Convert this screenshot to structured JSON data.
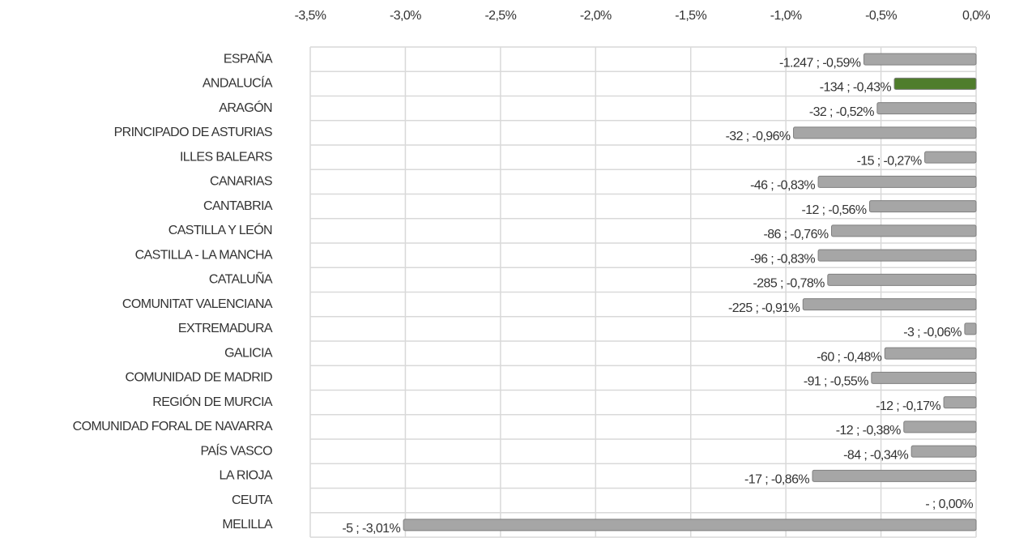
{
  "chart_data": {
    "type": "bar",
    "orientation": "horizontal",
    "categories": [
      "ESPAÑA",
      "ANDALUCÍA",
      "ARAGÓN",
      "PRINCIPADO DE ASTURIAS",
      "ILLES BALEARS",
      "CANARIAS",
      "CANTABRIA",
      "CASTILLA Y LEÓN",
      "CASTILLA - LA MANCHA",
      "CATALUÑA",
      "COMUNITAT VALENCIANA",
      "EXTREMADURA",
      "GALICIA",
      "COMUNIDAD DE MADRID",
      "REGIÓN DE MURCIA",
      "COMUNIDAD FORAL DE NAVARRA",
      "PAÍS VASCO",
      "LA RIOJA",
      "CEUTA",
      "MELILLA"
    ],
    "values": [
      -0.59,
      -0.43,
      -0.52,
      -0.96,
      -0.27,
      -0.83,
      -0.56,
      -0.76,
      -0.83,
      -0.78,
      -0.91,
      -0.06,
      -0.48,
      -0.55,
      -0.17,
      -0.38,
      -0.34,
      -0.86,
      0,
      -3.01
    ],
    "value_labels": [
      "-1.247 ; -0,59%",
      "-134 ; -0,43%",
      "-32 ; -0,52%",
      "-32 ; -0,96%",
      "-15 ; -0,27%",
      "-46 ; -0,83%",
      "-12 ; -0,56%",
      "-86 ; -0,76%",
      "-96 ; -0,83%",
      "-285 ; -0,78%",
      "-225 ; -0,91%",
      "-3 ; -0,06%",
      "-60 ; -0,48%",
      "-91 ; -0,55%",
      "-12 ; -0,17%",
      "-12 ; -0,38%",
      "-84 ; -0,34%",
      "-17 ; -0,86%",
      "- ; 0,00%",
      "-5 ; -3,01%"
    ],
    "colors": [
      "#a6a6a6",
      "#4f7d2c",
      "#a6a6a6",
      "#a6a6a6",
      "#a6a6a6",
      "#a6a6a6",
      "#a6a6a6",
      "#a6a6a6",
      "#a6a6a6",
      "#a6a6a6",
      "#a6a6a6",
      "#a6a6a6",
      "#a6a6a6",
      "#a6a6a6",
      "#a6a6a6",
      "#a6a6a6",
      "#a6a6a6",
      "#a6a6a6",
      "#a6a6a6",
      "#a6a6a6"
    ],
    "xlim": [
      -3.5,
      0
    ],
    "xticks": [
      {
        "value": -3.5,
        "label": "-3,5%"
      },
      {
        "value": -3.0,
        "label": "-3,0%"
      },
      {
        "value": -2.5,
        "label": "-2,5%"
      },
      {
        "value": -2.0,
        "label": "-2,0%"
      },
      {
        "value": -1.5,
        "label": "-1,5%"
      },
      {
        "value": -1.0,
        "label": "-1,0%"
      },
      {
        "value": -0.5,
        "label": "-0,5%"
      },
      {
        "value": 0,
        "label": "0,0%"
      }
    ],
    "grid": true
  }
}
